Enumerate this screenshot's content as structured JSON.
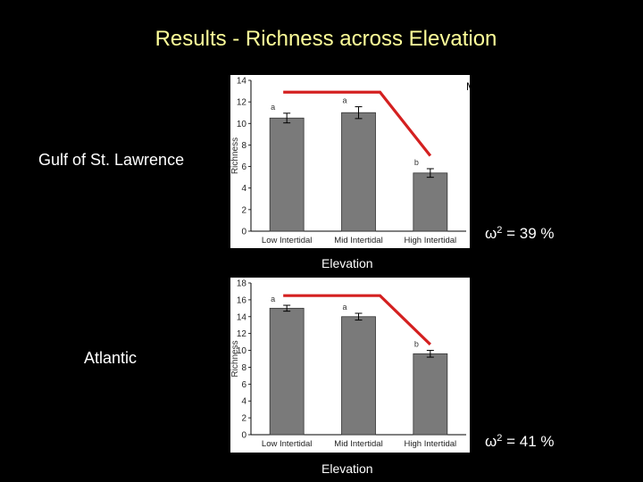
{
  "title": "Results  -  Richness across Elevation",
  "colors": {
    "title": "#ffff99",
    "bar": "#7a7a7a",
    "trend": "#d42020",
    "panel": "#ffffff",
    "background": "#000000"
  },
  "chart_data": [
    {
      "type": "bar",
      "region": "Gulf of St. Lawrence",
      "note": "Means ± SE",
      "ylabel": "Richness",
      "xlabel": "Elevation",
      "categories": [
        "Low Intertidal",
        "Mid Intertidal",
        "High Intertidal"
      ],
      "values": [
        10.5,
        11.0,
        5.4
      ],
      "errors": [
        0.45,
        0.55,
        0.4
      ],
      "letters": [
        "a",
        "a",
        "b"
      ],
      "ylim": [
        0,
        14
      ],
      "yticks": [
        0,
        2,
        4,
        6,
        8,
        10,
        12,
        14
      ],
      "omega": {
        "symbol": "ω",
        "exp": "2",
        "text": " = 39 %"
      },
      "trend": [
        12.9,
        12.9,
        7.0
      ]
    },
    {
      "type": "bar",
      "region": "Atlantic",
      "note": "",
      "ylabel": "Richness",
      "xlabel": "Elevation",
      "categories": [
        "Low Intertidal",
        "Mid Intertidal",
        "High Intertidal"
      ],
      "values": [
        15.0,
        14.0,
        9.6
      ],
      "errors": [
        0.35,
        0.4,
        0.4
      ],
      "letters": [
        "a",
        "a",
        "b"
      ],
      "ylim": [
        0,
        18
      ],
      "yticks": [
        0,
        2,
        4,
        6,
        8,
        10,
        12,
        14,
        16,
        18
      ],
      "omega": {
        "symbol": "ω",
        "exp": "2",
        "text": " = 41 %"
      },
      "trend": [
        16.5,
        16.5,
        10.7
      ]
    }
  ]
}
